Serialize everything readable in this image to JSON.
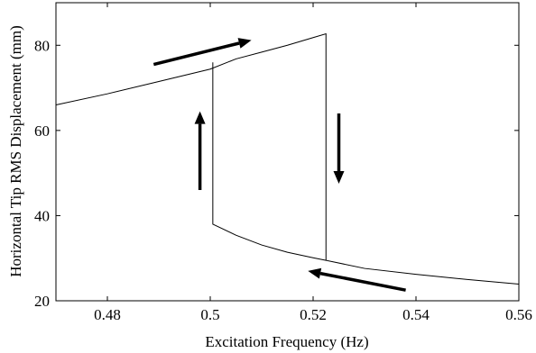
{
  "chart_data": {
    "type": "line",
    "title": "",
    "xlabel": "Excitation Frequency (Hz)",
    "ylabel": "Horizontal Tip RMS Displacement (mm)",
    "xlim": [
      0.47,
      0.56
    ],
    "ylim": [
      20,
      90
    ],
    "xticks": [
      0.48,
      0.5,
      0.52,
      0.54,
      0.56
    ],
    "xtick_labels": [
      "0.48",
      "0.5",
      "0.52",
      "0.54",
      "0.56"
    ],
    "yticks": [
      20,
      40,
      60,
      80
    ],
    "ytick_labels": [
      "20",
      "40",
      "60",
      "80"
    ],
    "grid": false,
    "legend": "none",
    "series": [
      {
        "points": [
          [
            0.47,
            66.0
          ],
          [
            0.48,
            68.6
          ],
          [
            0.49,
            71.5
          ],
          [
            0.5,
            74.4
          ],
          [
            0.505,
            76.8
          ],
          [
            0.51,
            78.4
          ],
          [
            0.515,
            80.0
          ],
          [
            0.52,
            81.8
          ],
          [
            0.5225,
            82.7
          ],
          [
            0.5225,
            29.5
          ],
          [
            0.53,
            27.6
          ],
          [
            0.54,
            26.2
          ],
          [
            0.55,
            25.0
          ],
          [
            0.56,
            23.9
          ]
        ]
      },
      {
        "points": [
          [
            0.5005,
            76.0
          ],
          [
            0.5005,
            38.0
          ],
          [
            0.505,
            35.4
          ],
          [
            0.51,
            33.1
          ],
          [
            0.515,
            31.4
          ],
          [
            0.52,
            30.1
          ],
          [
            0.5225,
            29.5
          ]
        ]
      }
    ],
    "arrows": [
      {
        "from": [
          0.489,
          75.5
        ],
        "to": [
          0.508,
          81.2
        ],
        "direction": "up-right"
      },
      {
        "from": [
          0.498,
          46.0
        ],
        "to": [
          0.498,
          64.5
        ],
        "direction": "up"
      },
      {
        "from": [
          0.525,
          64.0
        ],
        "to": [
          0.525,
          47.5
        ],
        "direction": "down"
      },
      {
        "from": [
          0.538,
          22.5
        ],
        "to": [
          0.519,
          27.0
        ],
        "direction": "left"
      }
    ],
    "colors": {
      "line": "#000000",
      "arrow": "#000000"
    }
  }
}
